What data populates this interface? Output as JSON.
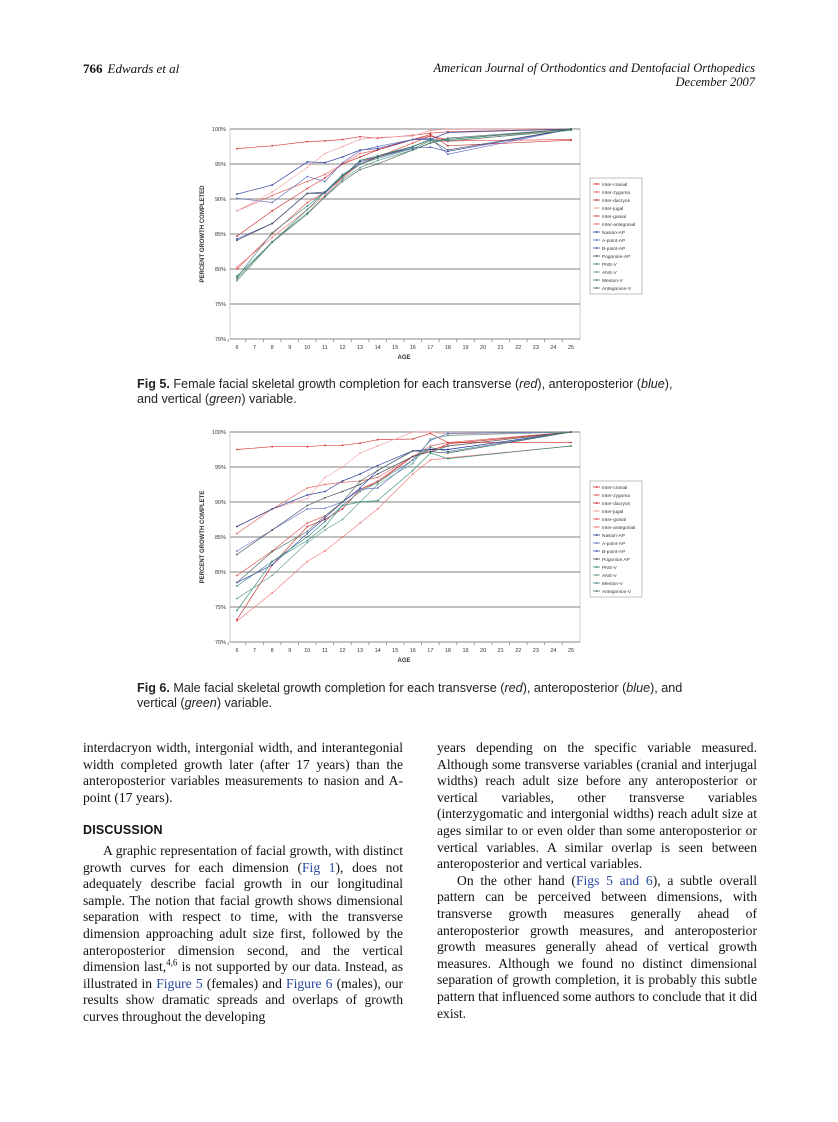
{
  "header": {
    "page_number": "766",
    "authors": "Edwards et al",
    "journal": "American Journal of Orthodontics and Dentofacial Orthopedics",
    "issue_date": "December 2007"
  },
  "chart_data": [
    {
      "type": "line",
      "figure": "Fig 5",
      "xlabel": "AGE",
      "ylabel": "PERCENT GROWTH COMPLETED",
      "x_ticks": [
        "6",
        "7",
        "8",
        "9",
        "10",
        "11",
        "12",
        "13",
        "14",
        "15",
        "16",
        "17",
        "18",
        "19",
        "20",
        "21",
        "22",
        "23",
        "24",
        "25"
      ],
      "y_ticks": [
        "70%",
        "75%",
        "80%",
        "85%",
        "90%",
        "95%",
        "100%"
      ],
      "xlim": [
        6,
        25
      ],
      "ylim": [
        70,
        100
      ],
      "grid": "horizontal",
      "legend_placement": "right",
      "x": [
        6,
        8,
        10,
        11,
        12,
        13,
        14,
        16,
        17,
        18,
        25
      ],
      "series": [
        {
          "name": "Inter-cranial",
          "color": "#d8302e",
          "values": [
            97.2,
            97.6,
            98.2,
            98.3,
            98.5,
            98.9,
            98.7,
            99.1,
            99.4,
            99.6,
            100
          ]
        },
        {
          "name": "Inter-zygoma",
          "color": "#e0605c",
          "values": [
            88.3,
            90.5,
            92.5,
            93.5,
            95,
            96.5,
            97,
            98.5,
            99,
            98.5,
            100
          ]
        },
        {
          "name": "Inter-dacryon",
          "color": "#c42828",
          "values": [
            84.7,
            88.3,
            91.5,
            93,
            95,
            96,
            97,
            98.5,
            99.2,
            97.6,
            98.4
          ]
        },
        {
          "name": "Inter-jugal",
          "color": "#f0a0a0",
          "values": [
            88.3,
            91,
            94.5,
            96.5,
            97.5,
            98.5,
            98.8,
            99,
            99.8,
            100,
            100
          ]
        },
        {
          "name": "Inter-gonial",
          "color": "#e04848",
          "values": [
            80,
            85,
            89.5,
            91,
            93,
            95.5,
            96,
            98,
            99,
            98.3,
            98.5
          ]
        },
        {
          "name": "Inter-antegonial",
          "color": "#f07070",
          "values": [
            80.3,
            84.5,
            88.5,
            90.5,
            93,
            95,
            96,
            97.5,
            98.5,
            98.2,
            100
          ]
        },
        {
          "name": "Nasion-AP",
          "color": "#2a3a9a",
          "values": [
            90.7,
            92,
            95.3,
            95.2,
            96,
            97,
            97.2,
            98.5,
            98.5,
            99.5,
            100
          ]
        },
        {
          "name": "A-point-AP",
          "color": "#5a68c0",
          "values": [
            90.1,
            89.5,
            93.2,
            92.5,
            95.2,
            96.9,
            97.5,
            98.5,
            98.7,
            96.4,
            100
          ]
        },
        {
          "name": "B-point-AP",
          "color": "#3848b0",
          "values": [
            84.3,
            86.5,
            90.8,
            90.8,
            93.3,
            95.3,
            96,
            97.3,
            97.4,
            96.8,
            100
          ]
        },
        {
          "name": "Pogonion-AP",
          "color": "#404858",
          "values": [
            84.1,
            86.5,
            90.8,
            91,
            93.3,
            95,
            96,
            97.5,
            98.5,
            97,
            100
          ]
        },
        {
          "name": "PNS-V",
          "color": "#2a8a70",
          "values": [
            79,
            83.8,
            88.5,
            91,
            93.2,
            95.5,
            96.2,
            97.5,
            98.5,
            98.3,
            99.8
          ]
        },
        {
          "name": "ANS-V",
          "color": "#5a9a8a",
          "values": [
            78.3,
            83.8,
            87.8,
            90.3,
            92.8,
            94.5,
            95.5,
            97,
            98,
            98.5,
            100
          ]
        },
        {
          "name": "Menton-V",
          "color": "#3a8080",
          "values": [
            78.8,
            85.2,
            89,
            91,
            93.5,
            95,
            95.8,
            97.2,
            98.3,
            98.5,
            100
          ]
        },
        {
          "name": "Antegonion-V",
          "color": "#4a6a60",
          "values": [
            78.6,
            83.9,
            88,
            90.3,
            92.5,
            94.2,
            95,
            97,
            98,
            98.7,
            100
          ]
        }
      ]
    },
    {
      "type": "line",
      "figure": "Fig 6",
      "xlabel": "AGE",
      "ylabel": "PERCENT GROWTH COMPLETE",
      "x_ticks": [
        "6",
        "7",
        "8",
        "9",
        "10",
        "11",
        "12",
        "13",
        "14",
        "15",
        "16",
        "17",
        "18",
        "19",
        "20",
        "21",
        "22",
        "23",
        "24",
        "25"
      ],
      "y_ticks": [
        "70%",
        "75%",
        "80%",
        "85%",
        "90%",
        "95%",
        "100%"
      ],
      "xlim": [
        6,
        25
      ],
      "ylim": [
        70,
        100
      ],
      "grid": "horizontal",
      "legend_placement": "right",
      "x": [
        6,
        8,
        10,
        11,
        12,
        13,
        14,
        16,
        17,
        18,
        25
      ],
      "series": [
        {
          "name": "Inter-cranial",
          "color": "#d8302e",
          "values": [
            97.5,
            97.9,
            97.9,
            98.1,
            98.1,
            98.4,
            98.9,
            99,
            99.8,
            98.5,
            98.5
          ]
        },
        {
          "name": "Inter-zygoma",
          "color": "#e0605c",
          "values": [
            85.5,
            89,
            92,
            92.5,
            92.8,
            93,
            93.5,
            96.5,
            98,
            98.5,
            100
          ]
        },
        {
          "name": "Inter-dacryon",
          "color": "#c42828",
          "values": [
            73.2,
            81,
            86.5,
            87.5,
            89,
            91.8,
            92.8,
            96.5,
            97.2,
            98.3,
            100
          ]
        },
        {
          "name": "Inter-jugal",
          "color": "#f0a0a0",
          "values": [
            86.5,
            89,
            90.5,
            93.5,
            95,
            97,
            98,
            100,
            100,
            99.7,
            100
          ]
        },
        {
          "name": "Inter-gonial",
          "color": "#e04848",
          "values": [
            79.5,
            83,
            87,
            88,
            90,
            91.8,
            93,
            96.5,
            97.5,
            98,
            100
          ]
        },
        {
          "name": "Inter-antegonial",
          "color": "#f07070",
          "values": [
            73,
            77,
            81.5,
            83,
            85,
            87,
            89,
            94,
            96,
            96.3,
            98
          ]
        },
        {
          "name": "Nasion-AP",
          "color": "#2a3a9a",
          "values": [
            86.5,
            89,
            91,
            91.5,
            93,
            94,
            95.2,
            97.3,
            97.5,
            97.5,
            100
          ]
        },
        {
          "name": "A-point-AP",
          "color": "#5a68c0",
          "values": [
            83,
            86,
            89,
            89.1,
            90,
            91.8,
            92,
            96,
            98.8,
            99.8,
            100
          ]
        },
        {
          "name": "B-point-AP",
          "color": "#3848b0",
          "values": [
            78.5,
            81,
            85.5,
            87.7,
            90,
            92,
            94.5,
            97.3,
            97.5,
            97.5,
            100
          ]
        },
        {
          "name": "Pogonion AP",
          "color": "#404858",
          "values": [
            82.5,
            86,
            89.5,
            90.6,
            91.5,
            92.5,
            94,
            96.5,
            97.2,
            97,
            100
          ]
        },
        {
          "name": "PNS-V",
          "color": "#2a8a70",
          "values": [
            74.5,
            81.5,
            84.5,
            86.5,
            89.5,
            90,
            90.2,
            94.5,
            97,
            96.2,
            98
          ]
        },
        {
          "name": "ANS-V",
          "color": "#5a9a8a",
          "values": [
            76.2,
            79.5,
            84.2,
            86,
            87.5,
            90,
            92.5,
            95.5,
            99,
            99.5,
            100
          ]
        },
        {
          "name": "Menton-V",
          "color": "#3a8080",
          "values": [
            78,
            81.5,
            85,
            87.2,
            89.5,
            91.5,
            92.8,
            96,
            97.8,
            97.2,
            100
          ]
        },
        {
          "name": "Antegonion-V",
          "color": "#4a6a60",
          "values": [
            78.5,
            82.9,
            85.8,
            88,
            90,
            93,
            94.5,
            97.3,
            97.1,
            98,
            100
          ]
        }
      ]
    }
  ],
  "fig5_caption": {
    "label": "Fig 5.",
    "parts": [
      "Female facial skeletal growth completion for each transverse (",
      "red",
      "), anteroposterior (",
      "blue",
      "),",
      "and vertical (",
      "green",
      ") variable."
    ]
  },
  "fig6_caption": {
    "label": "Fig 6.",
    "parts": [
      "Male facial skeletal growth completion for each transverse (",
      "red",
      "), anteroposterior (",
      "blue",
      "), and",
      "vertical (",
      "green",
      ") variable."
    ]
  },
  "body": {
    "left": [
      {
        "type": "p",
        "indent": false,
        "segments": [
          {
            "t": "interdacryon width, intergonial width, and interantegonial width completed growth later (after 17 years) than the anteroposterior variables measurements to nasion and A-point (17 years)."
          }
        ]
      },
      {
        "type": "h",
        "text": "DISCUSSION"
      },
      {
        "type": "p",
        "indent": true,
        "segments": [
          {
            "t": "A graphic representation of facial growth, with distinct growth curves for each dimension ("
          },
          {
            "t": "Fig 1",
            "link": true
          },
          {
            "t": "), does not adequately describe facial growth in our longitudinal sample. The notion that facial growth shows dimensional separation with respect to time, with the transverse dimension approaching adult size first, followed by the anteroposterior dimension second, and the vertical dimension last,"
          },
          {
            "t": "4,6",
            "sup": true
          },
          {
            "t": " is not supported by our data. Instead, as illustrated in "
          },
          {
            "t": "Figure 5",
            "link": true
          },
          {
            "t": " (females) and "
          },
          {
            "t": "Figure 6",
            "link": true
          },
          {
            "t": " (males), our results show dramatic spreads and overlaps of growth curves throughout the developing"
          }
        ]
      }
    ],
    "right": [
      {
        "type": "p",
        "indent": false,
        "segments": [
          {
            "t": "years depending on the specific variable measured. Although some transverse variables (cranial and interjugal widths) reach adult size before any anteroposterior or vertical variables, other transverse variables (interzygomatic and intergonial widths) reach adult size at ages similar to or even older than some anteroposterior or vertical variables. A similar overlap is seen between anteroposterior and vertical variables."
          }
        ]
      },
      {
        "type": "p",
        "indent": true,
        "segments": [
          {
            "t": "On the other hand ("
          },
          {
            "t": "Figs 5 and 6",
            "link": true
          },
          {
            "t": "), a subtle overall pattern can be perceived between dimensions, with transverse growth measures generally ahead of anteroposterior growth measures, and anteroposterior growth measures generally ahead of vertical growth measures. Although we found no distinct dimensional separation of growth completion, it is probably this subtle pattern that influenced some authors to conclude that it did exist."
          }
        ]
      }
    ]
  }
}
